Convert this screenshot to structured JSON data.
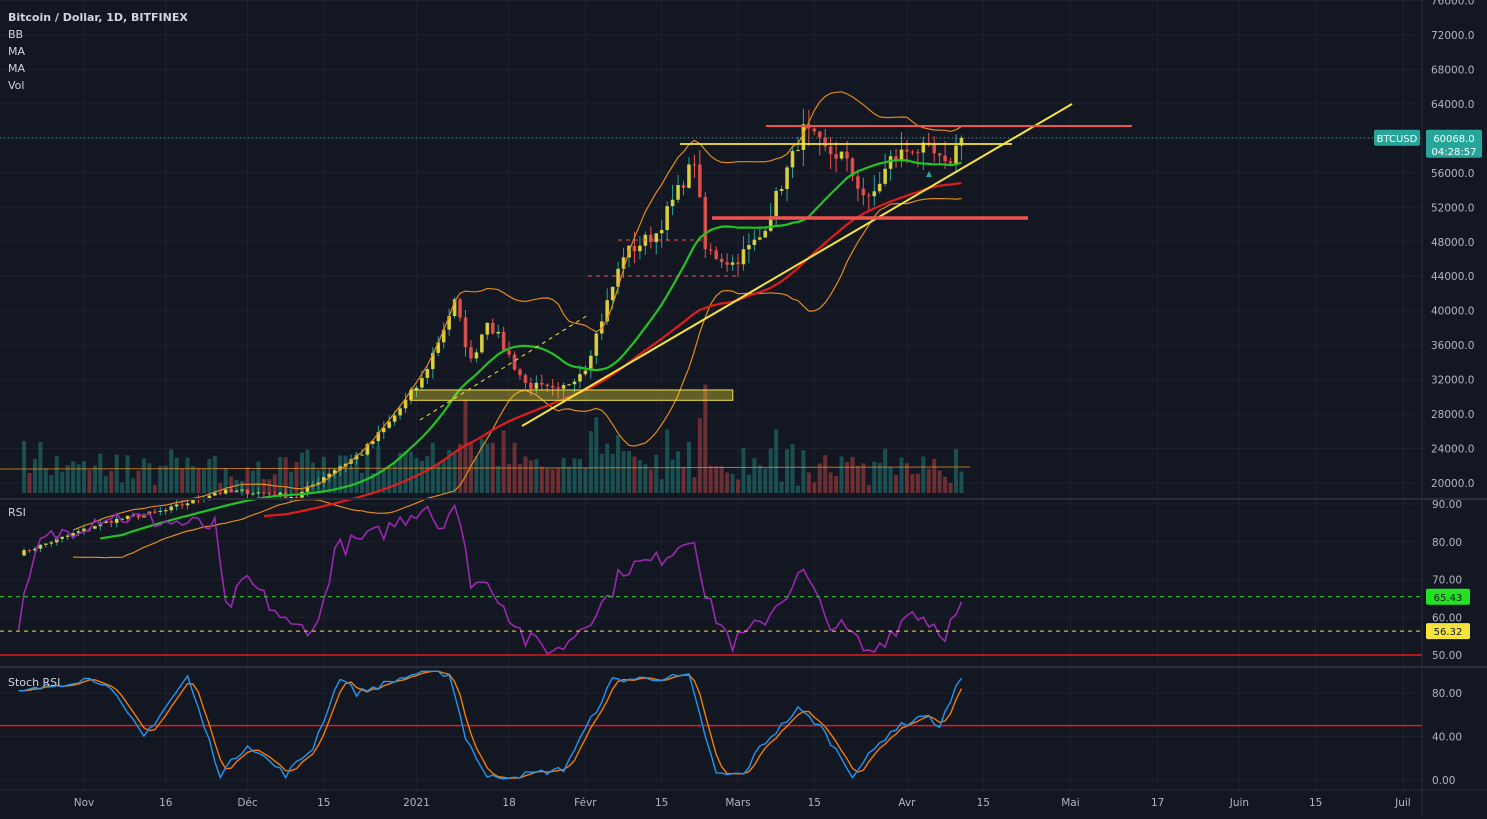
{
  "header": {
    "symbol_title": "Bitcoin / Dollar, 1D, BITFINEX",
    "indicators": [
      "BB",
      "MA",
      "MA",
      "Vol"
    ]
  },
  "price_panel": {
    "ticker": "BTCUSD",
    "last_price": "60068.0",
    "countdown": "04:28:57",
    "y_ticks": [
      "76000.0",
      "72000.0",
      "68000.0",
      "64000.0",
      "60000.0",
      "56000.0",
      "52000.0",
      "48000.0",
      "44000.0",
      "40000.0",
      "36000.0",
      "32000.0",
      "28000.0",
      "24000.0",
      "20000.0"
    ]
  },
  "rsi_panel": {
    "label": "RSI",
    "y_ticks": [
      "90.00",
      "80.00",
      "70.00",
      "60.00",
      "50.00"
    ],
    "green_level": "65.43",
    "yellow_level": "56.32"
  },
  "stoch_panel": {
    "label": "Stoch RSI",
    "y_ticks": [
      "80.00",
      "40.00",
      "0.00"
    ]
  },
  "x_axis": [
    "Nov",
    "16",
    "Déc",
    "15",
    "2021",
    "18",
    "Févr",
    "15",
    "Mars",
    "15",
    "Avr",
    "15",
    "Mai",
    "17",
    "Juin",
    "15",
    "Juil"
  ],
  "colors": {
    "background": "#131722",
    "bull": "#26a69a",
    "bear": "#ef5350",
    "ma_fast": "#22c322",
    "ma_slow": "#e01c1c",
    "bollinger": "#e08a1e",
    "trendline": "#f6e43c",
    "rsi": "#9c27b0",
    "stoch_k": "#2196f3",
    "stoch_d": "#f57c00"
  },
  "chart_data": {
    "type": "candlestick",
    "title": "Bitcoin / Dollar, 1D, BITFINEX",
    "price_range": [
      19000,
      76000
    ],
    "price_keypoints": [
      [
        "2020-10-20",
        11800
      ],
      [
        "2020-11-05",
        15500
      ],
      [
        "2020-11-16",
        16800
      ],
      [
        "2020-11-25",
        18900
      ],
      [
        "2020-12-01",
        19000
      ],
      [
        "2020-12-10",
        18400
      ],
      [
        "2020-12-16",
        21200
      ],
      [
        "2020-12-22",
        23500
      ],
      [
        "2020-12-27",
        27000
      ],
      [
        "2021-01-02",
        32000
      ],
      [
        "2021-01-08",
        41000
      ],
      [
        "2021-01-11",
        34000
      ],
      [
        "2021-01-14",
        39000
      ],
      [
        "2021-01-21",
        31500
      ],
      [
        "2021-01-27",
        30500
      ],
      [
        "2021-02-01",
        33500
      ],
      [
        "2021-02-08",
        46500
      ],
      [
        "2021-02-14",
        49000
      ],
      [
        "2021-02-21",
        57500
      ],
      [
        "2021-02-23",
        47000
      ],
      [
        "2021-02-28",
        45500
      ],
      [
        "2021-03-05",
        48500
      ],
      [
        "2021-03-13",
        61000
      ],
      [
        "2021-03-17",
        58500
      ],
      [
        "2021-03-20",
        58000
      ],
      [
        "2021-03-25",
        52500
      ],
      [
        "2021-03-29",
        57500
      ],
      [
        "2021-04-02",
        59000
      ],
      [
        "2021-04-06",
        58000
      ],
      [
        "2021-04-08",
        56500
      ],
      [
        "2021-04-11",
        60068
      ]
    ],
    "rsi_keypoints": [
      [
        "2020-10-20",
        59
      ],
      [
        "2020-10-24",
        80
      ],
      [
        "2020-11-05",
        87
      ],
      [
        "2020-11-25",
        84
      ],
      [
        "2020-11-27",
        62
      ],
      [
        "2020-12-01",
        70
      ],
      [
        "2020-12-09",
        57
      ],
      [
        "2020-12-14",
        58
      ],
      [
        "2020-12-17",
        78
      ],
      [
        "2020-12-25",
        82
      ],
      [
        "2021-01-03",
        90
      ],
      [
        "2021-01-05",
        84
      ],
      [
        "2021-01-08",
        90
      ],
      [
        "2021-01-11",
        70
      ],
      [
        "2021-01-15",
        68
      ],
      [
        "2021-01-21",
        54
      ],
      [
        "2021-01-27",
        51
      ],
      [
        "2021-02-05",
        65
      ],
      [
        "2021-02-08",
        73
      ],
      [
        "2021-02-14",
        75
      ],
      [
        "2021-02-21",
        82
      ],
      [
        "2021-02-23",
        65
      ],
      [
        "2021-02-28",
        53
      ],
      [
        "2021-03-05",
        58
      ],
      [
        "2021-03-13",
        72
      ],
      [
        "2021-03-17",
        60
      ],
      [
        "2021-03-22",
        55
      ],
      [
        "2021-03-25",
        50
      ],
      [
        "2021-04-02",
        62
      ],
      [
        "2021-04-08",
        56
      ],
      [
        "2021-04-11",
        62.5
      ]
    ],
    "stoch_keypoints": [
      [
        "2020-10-20",
        80
      ],
      [
        "2020-11-01",
        93
      ],
      [
        "2020-11-05",
        90
      ],
      [
        "2020-11-09",
        60
      ],
      [
        "2020-11-12",
        40
      ],
      [
        "2020-11-20",
        95
      ],
      [
        "2020-11-26",
        5
      ],
      [
        "2020-12-01",
        33
      ],
      [
        "2020-12-08",
        5
      ],
      [
        "2020-12-13",
        30
      ],
      [
        "2020-12-18",
        95
      ],
      [
        "2020-12-21",
        80
      ],
      [
        "2021-01-01",
        98
      ],
      [
        "2021-01-07",
        98
      ],
      [
        "2021-01-10",
        40
      ],
      [
        "2021-01-14",
        2
      ],
      [
        "2021-01-21",
        5
      ],
      [
        "2021-01-28",
        10
      ],
      [
        "2021-02-06",
        92
      ],
      [
        "2021-02-20",
        95
      ],
      [
        "2021-02-25",
        5
      ],
      [
        "2021-03-02",
        5
      ],
      [
        "2021-03-05",
        30
      ],
      [
        "2021-03-12",
        65
      ],
      [
        "2021-03-16",
        50
      ],
      [
        "2021-03-22",
        5
      ],
      [
        "2021-03-29",
        45
      ],
      [
        "2021-04-04",
        60
      ],
      [
        "2021-04-07",
        50
      ],
      [
        "2021-04-11",
        95
      ]
    ],
    "rsi_range": [
      48,
      91
    ],
    "stoch_range": [
      -5,
      102
    ],
    "x_range": [
      "2020-10-18",
      "2021-07-06"
    ]
  }
}
